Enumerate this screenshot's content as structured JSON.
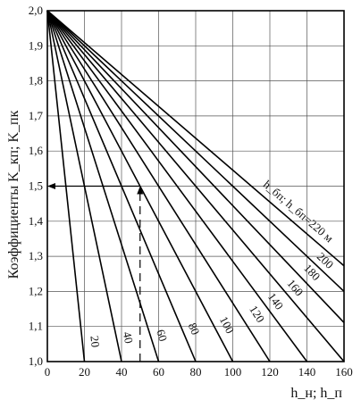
{
  "chart_data": {
    "type": "line",
    "ylabel": "Коэффициенты K_кп; K_пк",
    "xlabel": "h_н; h_п",
    "xlim": [
      0,
      160
    ],
    "ylim": [
      1.0,
      2.0
    ],
    "x_ticks": [
      "0",
      "20",
      "40",
      "60",
      "80",
      "100",
      "120",
      "140",
      "160"
    ],
    "y_ticks": [
      "1,0",
      "1,1",
      "1,2",
      "1,3",
      "1,4",
      "1,5",
      "1,6",
      "1,7",
      "1,8",
      "1,9",
      "2,0"
    ],
    "grid": true,
    "series": [
      {
        "name": "20",
        "x": [
          0,
          20
        ],
        "y": [
          2.0,
          1.0
        ]
      },
      {
        "name": "40",
        "x": [
          0,
          40
        ],
        "y": [
          2.0,
          1.0
        ]
      },
      {
        "name": "60",
        "x": [
          0,
          60
        ],
        "y": [
          2.0,
          1.0
        ]
      },
      {
        "name": "80",
        "x": [
          0,
          80
        ],
        "y": [
          2.0,
          1.0
        ]
      },
      {
        "name": "100",
        "x": [
          0,
          100
        ],
        "y": [
          2.0,
          1.0
        ]
      },
      {
        "name": "120",
        "x": [
          0,
          120
        ],
        "y": [
          2.0,
          1.0
        ]
      },
      {
        "name": "140",
        "x": [
          0,
          140
        ],
        "y": [
          2.0,
          1.0
        ]
      },
      {
        "name": "160",
        "x": [
          0,
          160
        ],
        "y": [
          2.0,
          1.0
        ]
      },
      {
        "name": "180",
        "x": [
          0,
          160
        ],
        "y": [
          2.0,
          1.111
        ]
      },
      {
        "name": "200",
        "x": [
          0,
          160
        ],
        "y": [
          2.0,
          1.2
        ]
      },
      {
        "name": "220",
        "x": [
          0,
          160
        ],
        "y": [
          2.0,
          1.273
        ]
      }
    ],
    "series_label_prefix": "h_бп; h_бп=220 м",
    "example": {
      "x": 50,
      "y": 1.5
    }
  }
}
